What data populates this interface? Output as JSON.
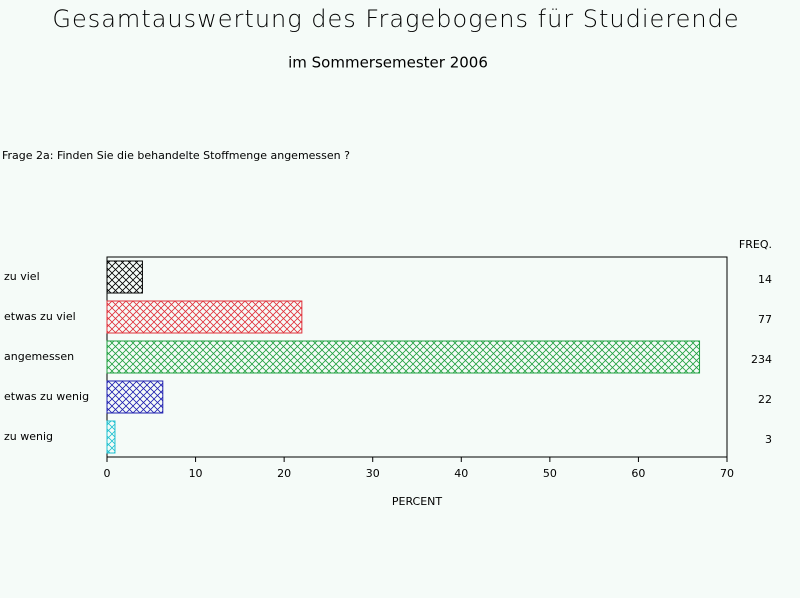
{
  "chart_data": {
    "type": "bar",
    "orientation": "horizontal",
    "title": "Gesamtauswertung des Fragebogens für Studierende",
    "subtitle": "im Sommersemester 2006",
    "question": "Frage 2a: Finden Sie die behandelte Stoffmenge angemessen ?",
    "categories": [
      "zu viel",
      "etwas zu viel",
      "angemessen",
      "etwas zu wenig",
      "zu wenig"
    ],
    "values": [
      4,
      22,
      66.9,
      6.3,
      0.9
    ],
    "colors": [
      "#000000",
      "#e0303a",
      "#20a040",
      "#2020b0",
      "#20c0d0"
    ],
    "freq_label": "FREQ.",
    "freq": [
      14,
      77,
      234,
      22,
      3
    ],
    "xlabel": "PERCENT",
    "xlim": [
      0,
      70
    ],
    "xticks": [
      0,
      10,
      20,
      30,
      40,
      50,
      60,
      70
    ]
  }
}
